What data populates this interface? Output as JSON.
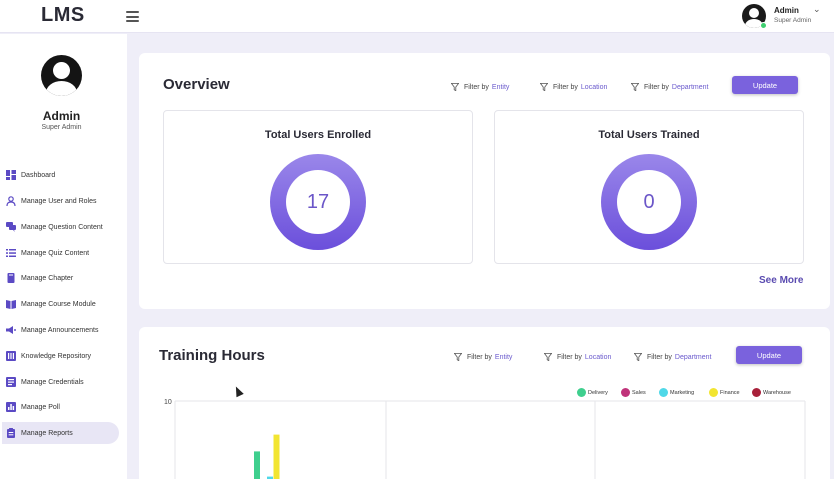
{
  "header": {
    "logo": "LMS",
    "user_name": "Admin",
    "user_role": "Super Admin"
  },
  "sidebar": {
    "user_name": "Admin",
    "user_role": "Super Admin",
    "items": [
      {
        "label": "Dashboard",
        "icon": "dashboard-icon"
      },
      {
        "label": "Manage User and Roles",
        "icon": "user-icon"
      },
      {
        "label": "Manage Question Content",
        "icon": "chat-icon"
      },
      {
        "label": "Manage Quiz Content",
        "icon": "list-icon"
      },
      {
        "label": "Manage Chapter",
        "icon": "bookmark-icon"
      },
      {
        "label": "Manage Course Module",
        "icon": "book-icon"
      },
      {
        "label": "Manage Announcements",
        "icon": "megaphone-icon"
      },
      {
        "label": "Knowledge Repository",
        "icon": "library-icon"
      },
      {
        "label": "Manage Credentials",
        "icon": "id-card-icon"
      },
      {
        "label": "Manage Poll",
        "icon": "poll-icon"
      },
      {
        "label": "Manage Reports",
        "icon": "report-icon"
      }
    ],
    "active_item": "Manage Reports"
  },
  "overview": {
    "title": "Overview",
    "filters": [
      {
        "prefix": "Filter by",
        "value": "Entity"
      },
      {
        "prefix": "Filter by",
        "value": "Location"
      },
      {
        "prefix": "Filter by",
        "value": "Department"
      }
    ],
    "update_label": "Update",
    "stats": [
      {
        "title": "Total Users Enrolled",
        "value": "17"
      },
      {
        "title": "Total Users Trained",
        "value": "0"
      }
    ],
    "see_more": "See More"
  },
  "training_hours": {
    "title": "Training Hours",
    "filters": [
      {
        "prefix": "Filter by",
        "value": "Entity"
      },
      {
        "prefix": "Filter by",
        "value": "Location"
      },
      {
        "prefix": "Filter by",
        "value": "Department"
      }
    ],
    "update_label": "Update"
  },
  "colors": {
    "accent": "#7a62dd",
    "delivery": "#3fcf8e",
    "sales": "#c0337a",
    "marketing": "#4fd8e8",
    "finance": "#f2e531",
    "warehouse": "#a8203a"
  },
  "chart_data": {
    "type": "bar",
    "title": "Training Hours",
    "legend": [
      "Delivery",
      "Sales",
      "Marketing",
      "Finance",
      "Warehouse"
    ],
    "legend_placement": "top-right",
    "y_tick_labels": [
      "10"
    ],
    "ylim": [
      0,
      10
    ],
    "grid": true,
    "series": [
      {
        "name": "Delivery",
        "values": [
          4
        ]
      },
      {
        "name": "Sales",
        "values": [
          0
        ]
      },
      {
        "name": "Marketing",
        "values": [
          1
        ]
      },
      {
        "name": "Finance",
        "values": [
          6
        ]
      },
      {
        "name": "Warehouse",
        "values": [
          0
        ]
      }
    ]
  }
}
